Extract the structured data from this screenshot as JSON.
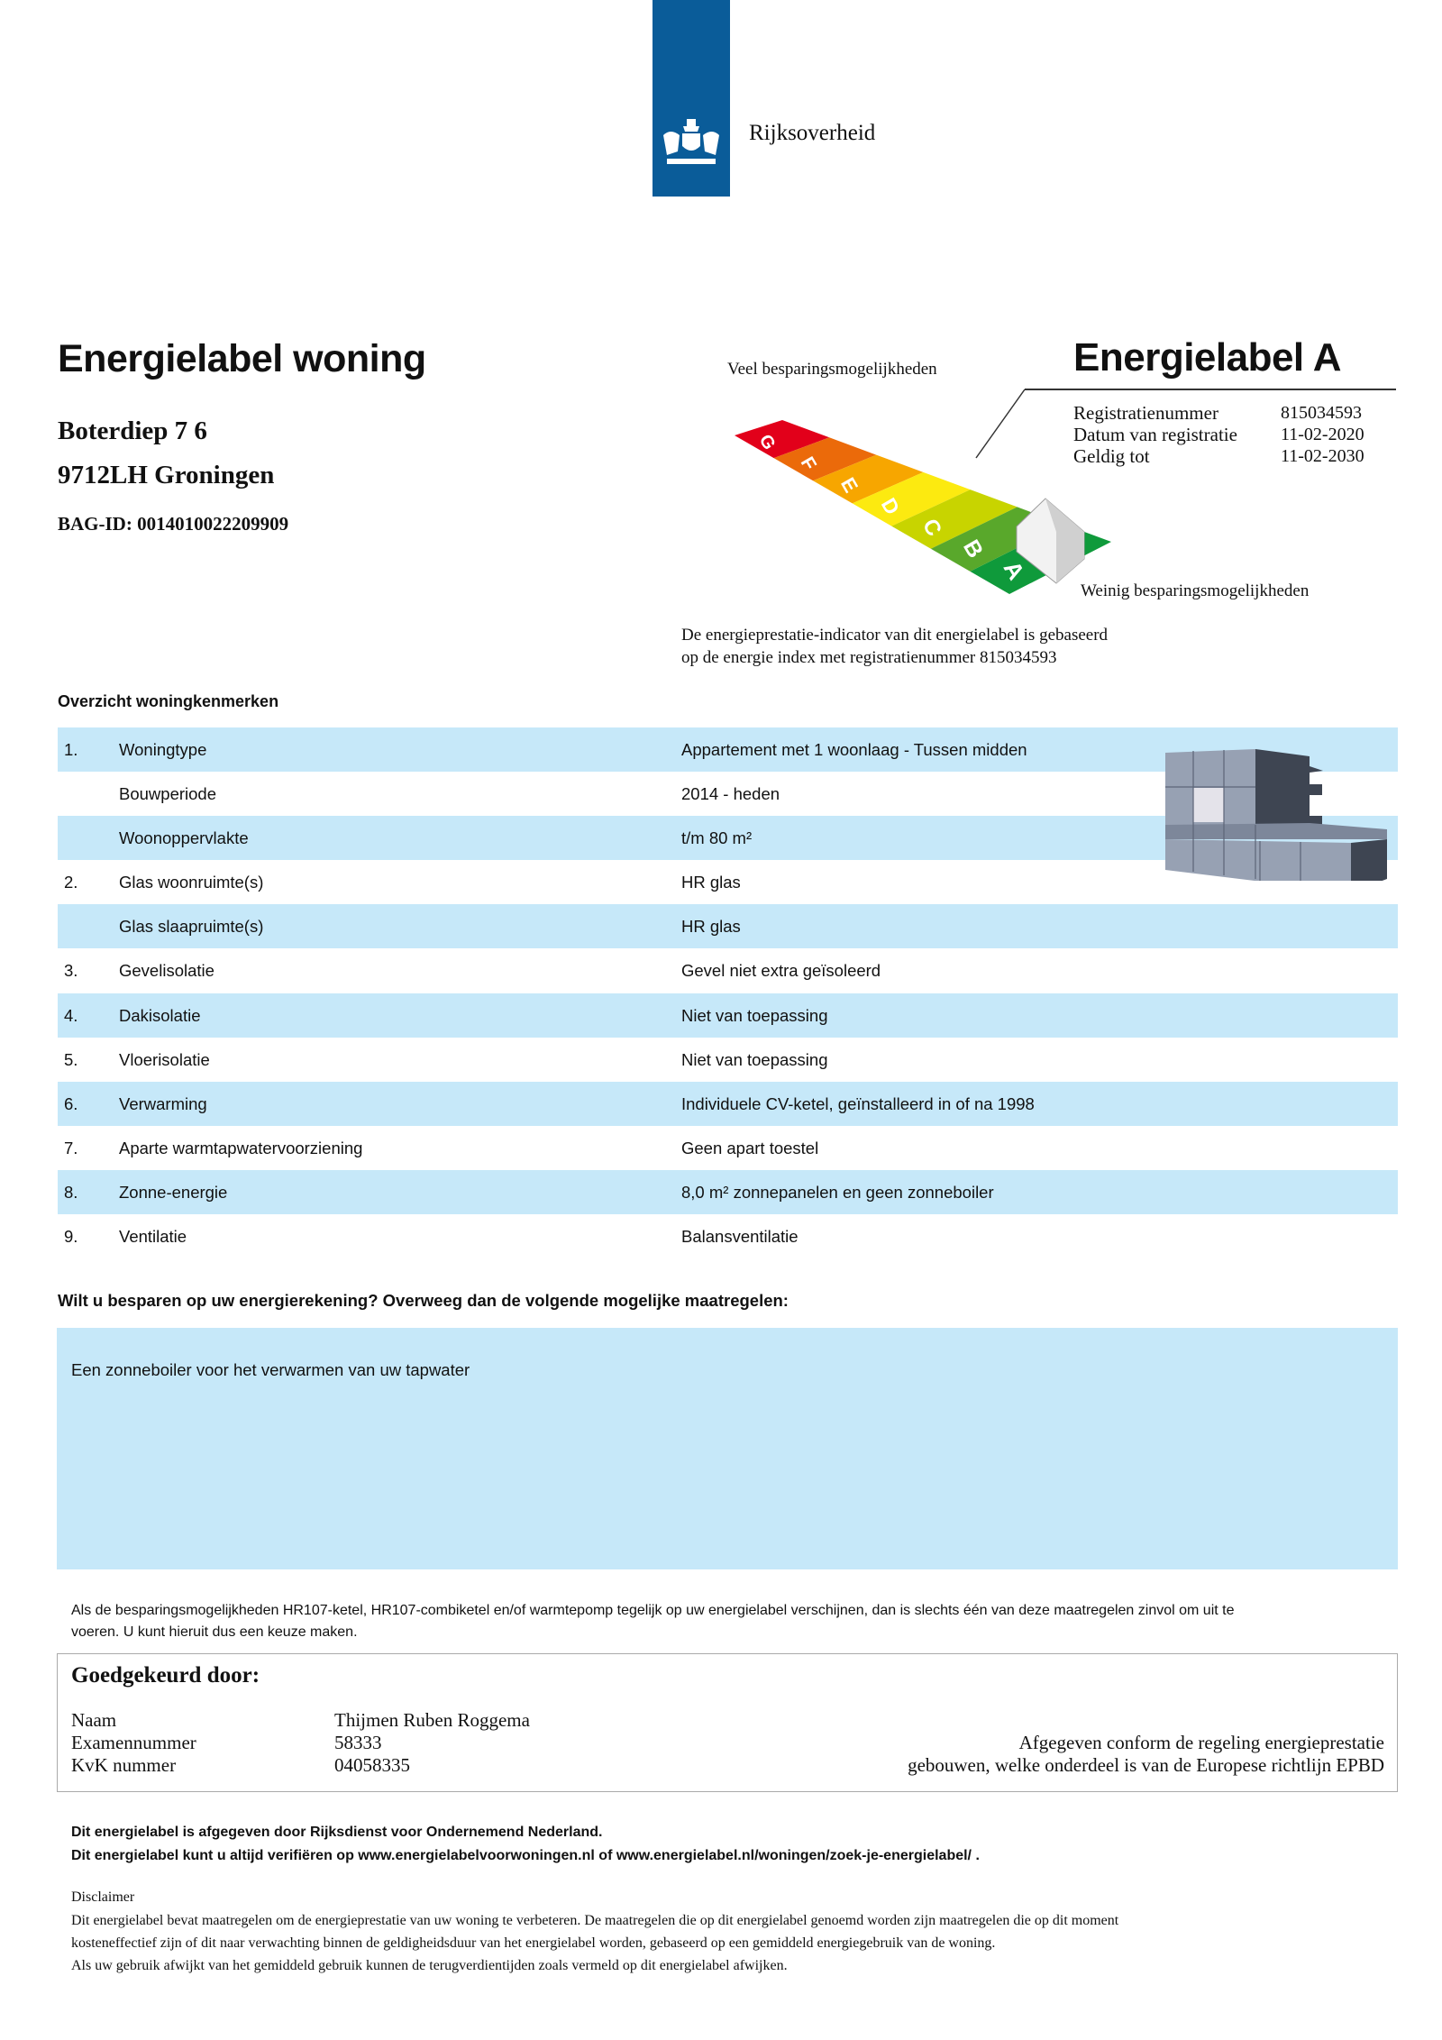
{
  "header": {
    "logo_text": "Rijksoverheid",
    "logo_color": "#0a5c99"
  },
  "title": "Energielabel woning",
  "address": {
    "street": "Boterdiep 7 6",
    "city": "9712LH Groningen",
    "bag_id": "BAG-ID: 0014010022209909"
  },
  "label": {
    "title": "Energielabel A",
    "many_savings": "Veel besparingsmogelijkheden",
    "few_savings": "Weinig besparingsmogelijkheden",
    "classes": [
      "G",
      "F",
      "E",
      "D",
      "C",
      "B",
      "A"
    ],
    "class_colors": [
      "#e2001a",
      "#eb6a0a",
      "#f7a600",
      "#fcea10",
      "#c8d400",
      "#59a82b",
      "#0f9a3b"
    ],
    "current_class": "A",
    "registration": [
      {
        "label": "Registratienummer",
        "value": "815034593"
      },
      {
        "label": "Datum van registratie",
        "value": "11-02-2020"
      },
      {
        "label": "Geldig tot",
        "value": "11-02-2030"
      }
    ],
    "basis_lines": [
      "De energieprestatie-indicator van dit energielabel is gebaseerd",
      "op de energie index met registratienummer 815034593"
    ]
  },
  "overview": {
    "heading": "Overzicht woningkenmerken",
    "rows": [
      {
        "num": "1.",
        "label": "Woningtype",
        "value": "Appartement met 1 woonlaag - Tussen midden"
      },
      {
        "num": "",
        "label": "Bouwperiode",
        "value": "2014 - heden"
      },
      {
        "num": "",
        "label": "Woonoppervlakte",
        "value": "t/m 80 m²"
      },
      {
        "num": "2.",
        "label": "Glas woonruimte(s)",
        "value": "HR glas"
      },
      {
        "num": "",
        "label": "Glas slaapruimte(s)",
        "value": "HR glas"
      },
      {
        "num": "3.",
        "label": "Gevelisolatie",
        "value": "Gevel niet extra geïsoleerd"
      },
      {
        "num": "4.",
        "label": "Dakisolatie",
        "value": "Niet van toepassing"
      },
      {
        "num": "5.",
        "label": "Vloerisolatie",
        "value": "Niet van toepassing"
      },
      {
        "num": "6.",
        "label": "Verwarming",
        "value": "Individuele CV-ketel, geïnstalleerd in of na 1998"
      },
      {
        "num": "7.",
        "label": "Aparte warmtapwatervoorziening",
        "value": "Geen apart toestel"
      },
      {
        "num": "8.",
        "label": "Zonne-energie",
        "value": "8,0 m² zonnepanelen en geen zonneboiler"
      },
      {
        "num": "9.",
        "label": "Ventilatie",
        "value": "Balansventilatie"
      }
    ]
  },
  "measures": {
    "heading": "Wilt u besparen op uw energierekening? Overweeg dan de volgende mogelijke maatregelen:",
    "items": [
      "Een zonneboiler voor het verwarmen van uw tapwater"
    ],
    "note_lines": [
      "Als de besparingsmogelijkheden HR107-ketel, HR107-combiketel en/of warmtepomp tegelijk op uw energielabel verschijnen, dan is slechts één van deze maatregelen zinvol om uit te",
      "voeren. U kunt hieruit dus een keuze maken."
    ]
  },
  "approval": {
    "heading": "Goedgekeurd door:",
    "fields": [
      {
        "label": "Naam",
        "value": "Thijmen Ruben  Roggema"
      },
      {
        "label": "Examennummer",
        "value": "58333"
      },
      {
        "label": "KvK nummer",
        "value": "04058335"
      }
    ],
    "conform_lines": [
      "Afgegeven conform de regeling energieprestatie",
      "gebouwen, welke onderdeel is van de Europese richtlijn EPBD"
    ]
  },
  "footer": {
    "issued": "Dit energielabel is afgegeven door Rijksdienst voor Ondernemend Nederland.",
    "verify": "Dit energielabel kunt u altijd verifiëren op www.energielabelvoorwoningen.nl of www.energielabel.nl/woningen/zoek-je-energielabel/ .",
    "disclaimer_title": "Disclaimer",
    "disclaimer_lines": [
      "Dit energielabel bevat maatregelen om de energieprestatie van uw woning te verbeteren. De maatregelen die op dit energielabel genoemd worden zijn maatregelen die op dit moment",
      "kosteneffectief zijn of dit naar verwachting binnen de geldigheidsduur van het energielabel worden, gebaseerd op een gemiddeld energiegebruik van de woning.",
      "Als uw gebruik afwijkt van het gemiddeld gebruik kunnen de terugverdientijden zoals vermeld op dit energielabel afwijken."
    ]
  }
}
